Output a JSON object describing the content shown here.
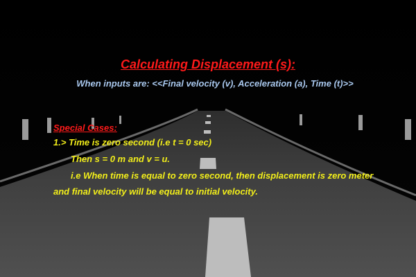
{
  "slide": {
    "title": "Calculating Displacement (s):",
    "subtitle": "When inputs are: <<Final velocity (v), Acceleration (a), Time (t)>>",
    "special_heading": "Special Cases:",
    "lines": [
      "1.> Time is zero second (i.e t = 0 sec)",
      "Then s = 0 m and v = u.",
      "i.e When time is equal to zero second, then displacement is zero meter",
      "and final velocity will be equal to initial velocity."
    ]
  },
  "colors": {
    "background": "#000000",
    "road": "#4b4b4b",
    "title": "#ff1a1a",
    "subtitle": "#a9c8ee",
    "body": "#f2ee1a"
  }
}
